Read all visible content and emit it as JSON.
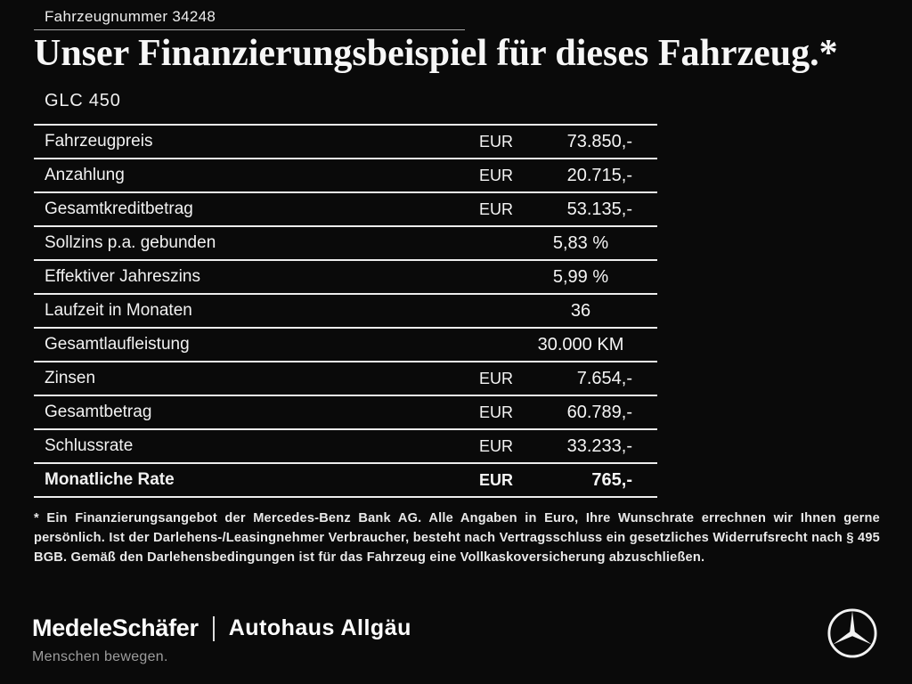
{
  "header": {
    "vehicle_number": "Fahrzeugnummer 34248",
    "title": "Unser Finanzierungsbeispiel für dieses Fahrzeug.*",
    "model": "GLC 450"
  },
  "table": {
    "rows": [
      {
        "label": "Fahrzeugpreis",
        "currency": "EUR",
        "value": "73.850,-",
        "bold": false
      },
      {
        "label": "Anzahlung",
        "currency": "EUR",
        "value": "20.715,-",
        "bold": false
      },
      {
        "label": "Gesamtkreditbetrag",
        "currency": "EUR",
        "value": "53.135,-",
        "bold": false
      },
      {
        "label": "Sollzins p.a. gebunden",
        "currency": "",
        "value": "5,83 %",
        "bold": false
      },
      {
        "label": "Effektiver Jahreszins",
        "currency": "",
        "value": "5,99 %",
        "bold": false
      },
      {
        "label": "Laufzeit in Monaten",
        "currency": "",
        "value": "36",
        "bold": false
      },
      {
        "label": "Gesamtlaufleistung",
        "currency": "",
        "value": "30.000 KM",
        "bold": false
      },
      {
        "label": "Zinsen",
        "currency": "EUR",
        "value": "7.654,-",
        "bold": false
      },
      {
        "label": "Gesamtbetrag",
        "currency": "EUR",
        "value": "60.789,-",
        "bold": false
      },
      {
        "label": "Schlussrate",
        "currency": "EUR",
        "value": "33.233,-",
        "bold": false
      },
      {
        "label": "Monatliche Rate",
        "currency": "EUR",
        "value": "765,-",
        "bold": true
      }
    ]
  },
  "footnote": "* Ein Finanzierungsangebot der Mercedes-Benz Bank AG. Alle Angaben in Euro, Ihre Wunschrate errechnen wir Ihnen gerne persönlich. Ist der Darlehens-/Leasingnehmer Verbraucher, besteht nach Vertragsschluss ein gesetzliches Widerrufsrecht nach § 495 BGB. Gemäß den Darlehensbedingungen ist für das Fahrzeug eine Vollkaskoversicherung abzuschließen.",
  "footer": {
    "dealer1": "MedeleSchäfer",
    "dealer2": "Autohaus Allgäu",
    "tagline": "Menschen bewegen.",
    "brand_icon": "mercedes-star-icon"
  },
  "colors": {
    "background": "#0a0a0a",
    "text": "#f5f5f5",
    "muted": "#9d9d9d",
    "line": "#ededed"
  }
}
